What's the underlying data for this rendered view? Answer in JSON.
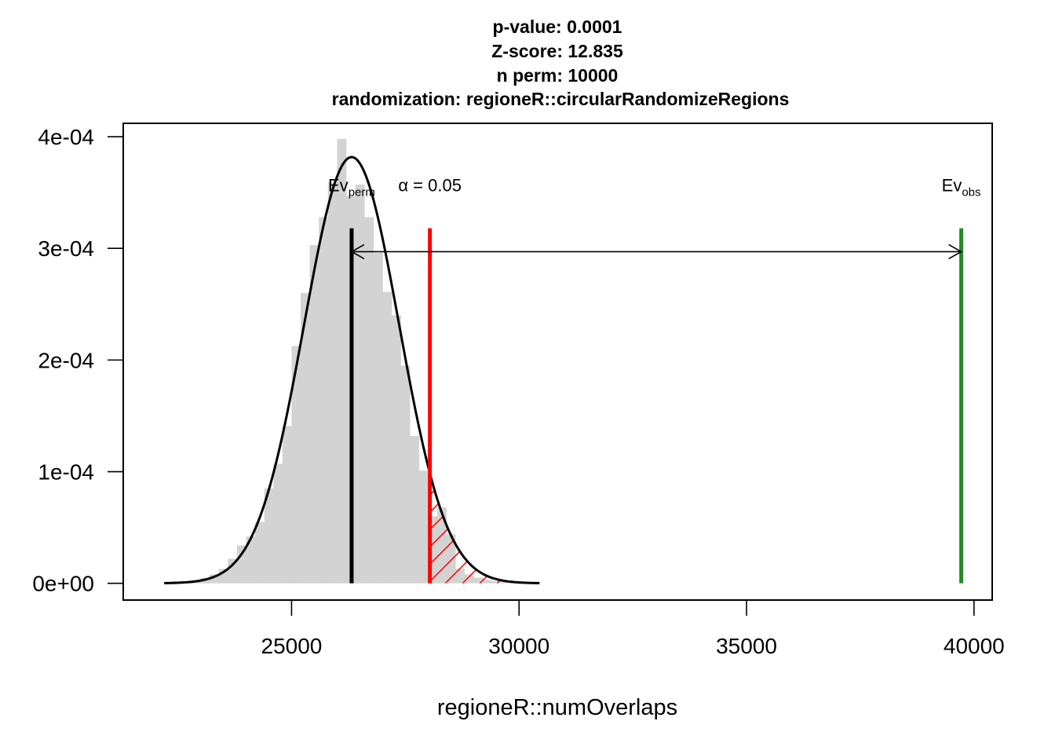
{
  "chart_data": {
    "type": "bar",
    "subtype": "histogram-with-density",
    "title_lines": [
      "p-value:  0.0001",
      "Z-score:  12.835",
      "n perm:  10000",
      "randomization:  regioneR::circularRandomizeRegions"
    ],
    "xlabel": "regioneR::numOverlaps",
    "ylabel": "",
    "xlim": [
      21300,
      40400
    ],
    "ylim": [
      -1.5e-05,
      0.000412
    ],
    "x_ticks": [
      25000,
      30000,
      35000,
      40000
    ],
    "x_tick_labels": [
      "25000",
      "30000",
      "35000",
      "40000"
    ],
    "y_ticks": [
      0,
      0.0001,
      0.0002,
      0.0003,
      0.0004
    ],
    "y_tick_labels": [
      "0e+00",
      "1e-04",
      "2e-04",
      "3e-04",
      "4e-04"
    ],
    "histogram": {
      "bin_width": 200,
      "bin_starts": [
        22400,
        22600,
        22800,
        23000,
        23200,
        23400,
        23600,
        23800,
        24000,
        24200,
        24400,
        24600,
        24800,
        25000,
        25200,
        25400,
        25600,
        25800,
        26000,
        26200,
        26400,
        26600,
        26800,
        27000,
        27200,
        27400,
        27600,
        27800,
        28000,
        28200,
        28400,
        28600,
        28800,
        29000,
        29200,
        29400,
        29600,
        29800
      ],
      "densities": [
        2e-06,
        2e-06,
        3e-06,
        5e-06,
        8e-06,
        1.3e-05,
        2.2e-05,
        3.4e-05,
        4.2e-05,
        5.5e-05,
        8.5e-05,
        0.000107,
        0.000141,
        0.0002125,
        0.00026,
        0.000303,
        0.000328,
        0.000359,
        0.000398,
        0.000347,
        0.000357,
        0.000328,
        0.000296,
        0.000261,
        0.00024,
        0.000195,
        0.000132,
        0.000101,
        6e-05,
        6.8e-05,
        4.4e-05,
        1.3e-05,
        8e-06,
        5e-06,
        3e-06,
        2e-06,
        1e-06,
        1e-06
      ],
      "color": "#d3d3d3"
    },
    "density_curve": {
      "mean": 26320,
      "sd": 1045,
      "x_range": [
        22200,
        30450
      ],
      "color": "#000000"
    },
    "verticals": [
      {
        "name": "Ev_perm",
        "x": 26320,
        "y_top": 0.000318,
        "color": "#000000"
      },
      {
        "name": "alpha",
        "x": 28040,
        "y_top": 0.000318,
        "color": "#ff0000"
      },
      {
        "name": "Ev_obs",
        "x": 39720,
        "y_top": 0.000318,
        "color": "#228b22"
      }
    ],
    "arrow": {
      "x_from": 26320,
      "x_to": 39720,
      "y": 0.000297
    },
    "hatch_region": {
      "x_from": 28040,
      "color": "#ff0000"
    },
    "annotations": {
      "ev_perm_main": "Ev",
      "ev_perm_sub": "perm",
      "alpha_text": "α = 0.05",
      "ev_obs_main": "Ev",
      "ev_obs_sub": "obs"
    },
    "grid": false,
    "legend": "none"
  }
}
